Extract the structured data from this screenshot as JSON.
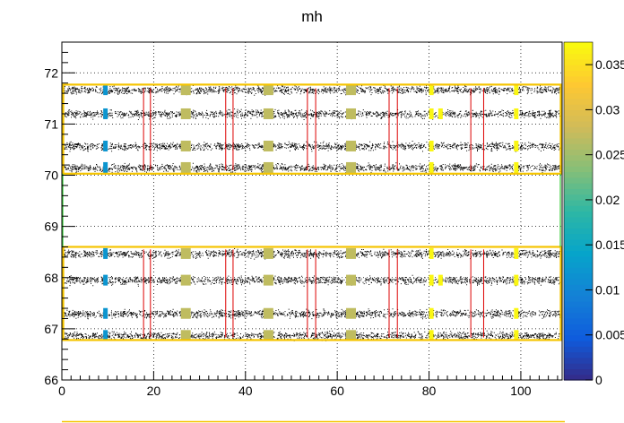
{
  "chart_data": {
    "type": "heatmap",
    "title": "mh",
    "xlabel": "",
    "ylabel": "",
    "xlim": [
      0,
      109
    ],
    "ylim": [
      66,
      72.6
    ],
    "xticks": [
      0,
      20,
      40,
      60,
      80,
      100
    ],
    "xtick_labels": [
      "0",
      "20",
      "40",
      "60",
      "80",
      "100"
    ],
    "yticks": [
      66,
      67,
      68,
      69,
      70,
      71,
      72
    ],
    "ytick_labels": [
      "66",
      "67",
      "68",
      "69",
      "70",
      "71",
      "72"
    ],
    "grid": true,
    "colorbar": {
      "range": [
        0,
        0.0375
      ],
      "ticks": [
        0,
        0.005,
        0.01,
        0.015,
        0.02,
        0.025,
        0.03,
        0.035
      ],
      "tick_labels": [
        "0",
        "0.005",
        "0.01",
        "0.015",
        "0.02",
        "0.025",
        "0.03",
        "0.035"
      ]
    },
    "colors": {
      "outline_box": "#f5c400",
      "column_lines": "#dd0000",
      "side_line": "#33cc33",
      "scatter": "#000000",
      "frame": "#000000"
    },
    "row_bands_y": [
      66.87,
      67.3,
      67.95,
      68.47,
      70.15,
      70.57,
      71.2,
      71.67
    ],
    "outline_boxes": [
      {
        "x": [
          0.3,
          108.7
        ],
        "y": [
          70.03,
          71.77
        ]
      },
      {
        "x": [
          0.3,
          108.7
        ],
        "y": [
          66.78,
          68.6
        ]
      }
    ],
    "column_lines_x": [
      17.8,
      19.3,
      35.7,
      37.3,
      53.5,
      55.3,
      71.3,
      73.1,
      89.1,
      91.9
    ],
    "cells": [
      {
        "x": 9.5,
        "values": [
          0.012,
          0.012,
          0.012,
          0.012,
          0.012,
          0.012,
          0.012,
          0.012
        ]
      },
      {
        "x": 27.0,
        "values": [
          0.027,
          0.027,
          0.027,
          0.027,
          0.027,
          0.027,
          0.027,
          0.027
        ]
      },
      {
        "x": 45.0,
        "values": [
          0.027,
          0.027,
          0.027,
          0.027,
          0.027,
          0.027,
          0.027,
          0.027
        ]
      },
      {
        "x": 63.0,
        "values": [
          0.027,
          0.027,
          0.027,
          0.027,
          0.027,
          0.027,
          0.027,
          0.027
        ]
      },
      {
        "x": 80.5,
        "values": [
          0.037,
          0.037,
          0.037,
          0.037,
          0.037,
          0.037,
          0.037,
          0.037
        ]
      },
      {
        "x": 82.5,
        "values": [
          0.0,
          0.0,
          0.037,
          0.0,
          0.0,
          0.0,
          0.037,
          0.0
        ]
      },
      {
        "x": 99.0,
        "values": [
          0.037,
          0.037,
          0.037,
          0.037,
          0.037,
          0.037,
          0.037,
          0.037
        ]
      }
    ]
  }
}
